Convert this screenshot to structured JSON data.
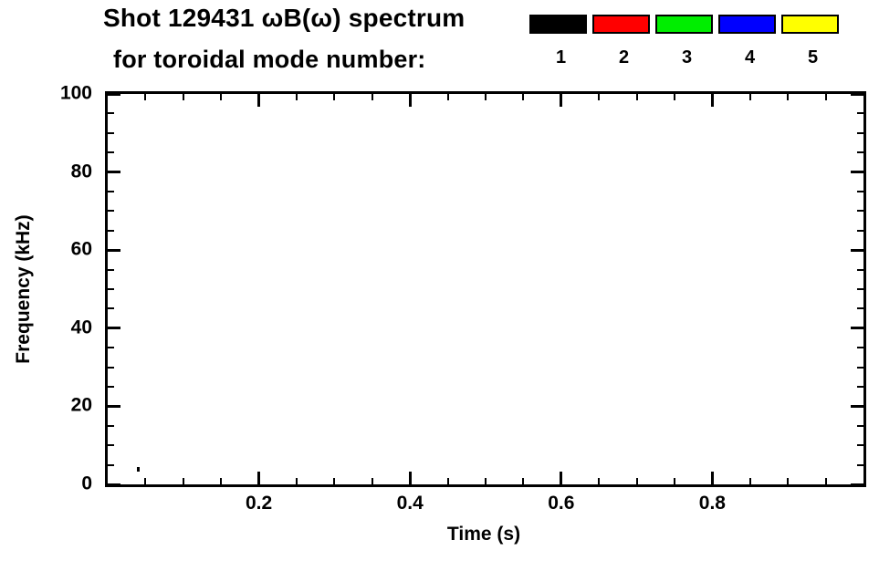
{
  "header": {
    "title_line1": "Shot 129431 ωB(ω) spectrum",
    "title_line2": "for toroidal mode number:"
  },
  "legend": {
    "items": [
      {
        "label": "1",
        "color": "#000000"
      },
      {
        "label": "2",
        "color": "#ff0000"
      },
      {
        "label": "3",
        "color": "#00ee00"
      },
      {
        "label": "4",
        "color": "#0000ff"
      },
      {
        "label": "5",
        "color": "#ffff00"
      }
    ]
  },
  "axes": {
    "xlabel": "Time (s)",
    "ylabel": "Frequency (kHz)"
  },
  "chart_data": {
    "type": "scatter",
    "title": "Shot 129431 ωB(ω) spectrum for toroidal mode number: 1 2 3 4 5",
    "xlabel": "Time (s)",
    "ylabel": "Frequency (kHz)",
    "xlim": [
      0.0,
      1.0
    ],
    "ylim": [
      0,
      100
    ],
    "xticks": [
      0.2,
      0.4,
      0.6,
      0.8
    ],
    "yticks": [
      0,
      20,
      40,
      60,
      80,
      100
    ],
    "x_minor_step": 0.05,
    "y_minor_step": 5,
    "grid": false,
    "legend_position": "top",
    "series": [
      {
        "name": "mode 1",
        "color": "#000000",
        "points": [
          {
            "x": 0.04,
            "y": 4
          }
        ]
      },
      {
        "name": "mode 2",
        "color": "#ff0000",
        "points": []
      },
      {
        "name": "mode 3",
        "color": "#00ee00",
        "points": []
      },
      {
        "name": "mode 4",
        "color": "#0000ff",
        "points": []
      },
      {
        "name": "mode 5",
        "color": "#ffff00",
        "points": []
      }
    ],
    "note": "Plot area is empty except a single tiny dark mark near t = 0.04 s, f = 4 kHz."
  }
}
